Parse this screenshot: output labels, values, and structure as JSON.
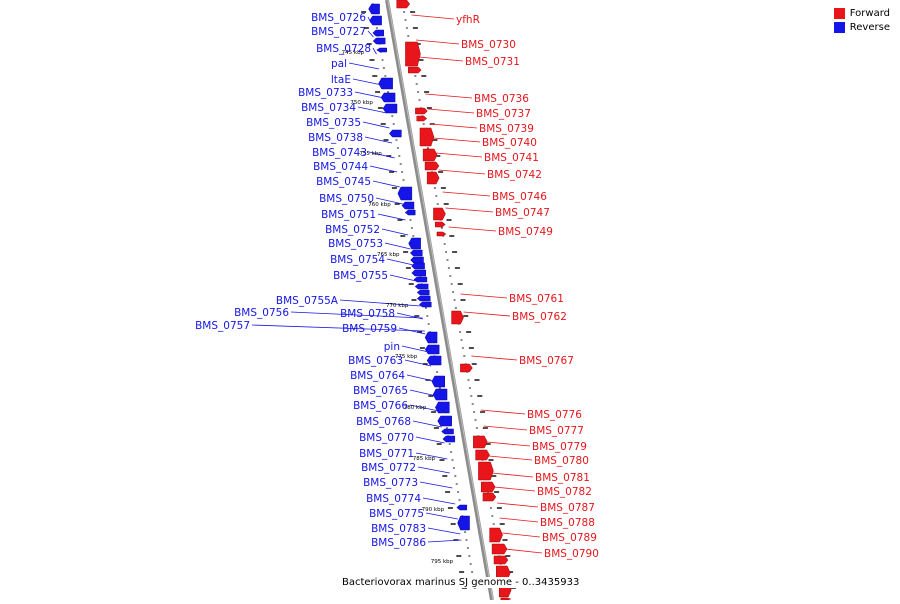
{
  "legend": {
    "forward": "Forward",
    "reverse": "Reverse"
  },
  "colors": {
    "forward": "#e8151b",
    "reverse": "#1515e8",
    "backbone": "#8c8c8c",
    "tick": "#111111"
  },
  "caption": "Bacteriovorax marinus SJ genome - 0..3435933",
  "scale_labels": [
    "745 kbp",
    "750 kbp",
    "755 kbp",
    "760 kbp",
    "765 kbp",
    "770 kbp",
    "775 kbp",
    "780 kbp",
    "785 kbp",
    "790 kbp",
    "795 kbp"
  ],
  "reverse_labels": [
    "BMS_0726",
    "BMS_0727",
    "BMS_0728",
    "pal",
    "ltaE",
    "BMS_0733",
    "BMS_0734",
    "BMS_0735",
    "BMS_0738",
    "BMS_0743",
    "BMS_0744",
    "BMS_0745",
    "BMS_0750",
    "BMS_0751",
    "BMS_0752",
    "BMS_0753",
    "BMS_0754",
    "BMS_0755",
    "BMS_0755A",
    "BMS_0756",
    "BMS_0757",
    "BMS_0758",
    "BMS_0759",
    "pin",
    "BMS_0763",
    "BMS_0764",
    "BMS_0765",
    "BMS_0766",
    "BMS_0768",
    "BMS_0770",
    "BMS_0771",
    "BMS_0772",
    "BMS_0773",
    "BMS_0774",
    "BMS_0775",
    "BMS_0783",
    "BMS_0786"
  ],
  "forward_labels": [
    "yfhR",
    "BMS_0730",
    "BMS_0731",
    "BMS_0736",
    "BMS_0737",
    "BMS_0739",
    "BMS_0740",
    "BMS_0741",
    "BMS_0742",
    "BMS_0746",
    "BMS_0747",
    "BMS_0749",
    "BMS_0761",
    "BMS_0762",
    "BMS_0767",
    "BMS_0776",
    "BMS_0777",
    "BMS_0779",
    "BMS_0780",
    "BMS_0781",
    "BMS_0782",
    "BMS_0787",
    "BMS_0788",
    "BMS_0789",
    "BMS_0790"
  ]
}
